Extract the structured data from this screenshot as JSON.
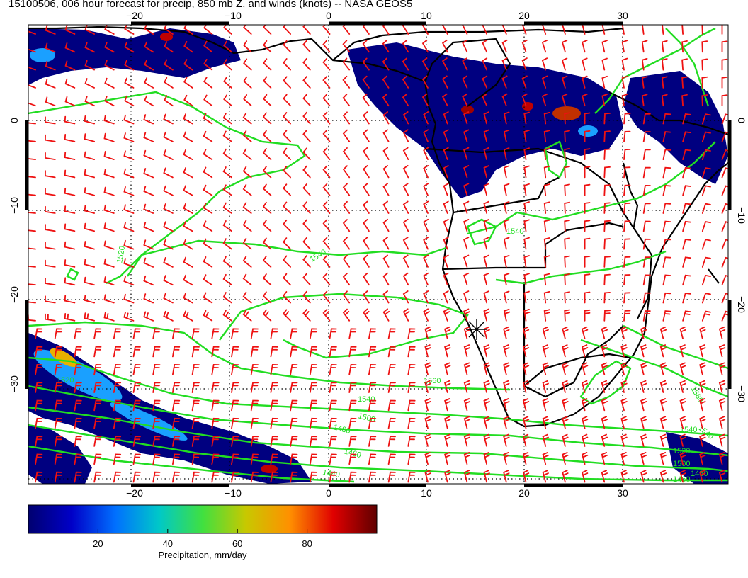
{
  "title": "15100506, 006 hour forecast for precip, 850 mb Z, and winds (knots) -- NASA GEOS5",
  "map": {
    "lon_ticks": [
      "−20",
      "−10",
      "0",
      "10",
      "20",
      "30"
    ],
    "lat_ticks": [
      "0",
      "−10",
      "−20",
      "−30"
    ],
    "contour_labels": [
      "1520",
      "1540",
      "1560",
      "1540",
      "1540",
      "1520",
      "1500",
      "1480",
      "1460",
      "1440",
      "1540",
      "1560",
      "1540",
      "1520",
      "1500",
      "1480",
      "1460"
    ],
    "colors": {
      "contour": "#22dd22",
      "wind_barb": "#ee1111",
      "coastline": "#000000",
      "precip_low": "#00008b",
      "precip_high": "#7a0000"
    },
    "wind_barb_icon": "wind-barb-icon",
    "station_marker_icon": "asterisk-marker-icon"
  },
  "colorbar": {
    "ticks": [
      "20",
      "40",
      "60",
      "80"
    ],
    "label": "Precipitation, mm/day",
    "range": [
      0,
      100
    ],
    "stops": [
      "#000070",
      "#0000c8",
      "#0070ff",
      "#00c8c8",
      "#40e040",
      "#c8c800",
      "#ff9000",
      "#e00000",
      "#600000"
    ]
  }
}
